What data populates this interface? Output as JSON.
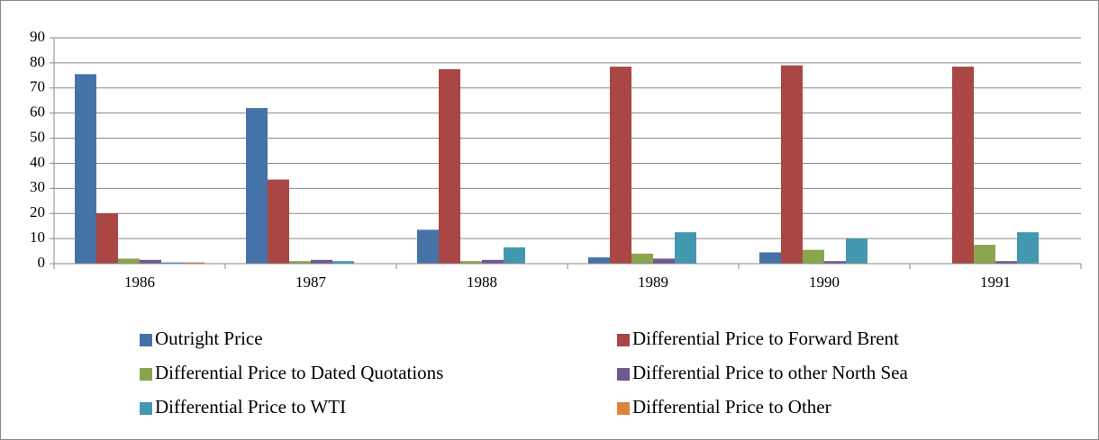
{
  "chart_data": {
    "type": "bar",
    "categories": [
      "1986",
      "1987",
      "1988",
      "1989",
      "1990",
      "1991"
    ],
    "series": [
      {
        "name": "Outright Price",
        "color": "#4572a7",
        "values": [
          75.5,
          62,
          13.5,
          2.5,
          4.5,
          0
        ]
      },
      {
        "name": "Differential Price to Forward Brent",
        "color": "#aa4643",
        "values": [
          20,
          33.5,
          77.5,
          78.5,
          79,
          78.5
        ]
      },
      {
        "name": "Differential Price to Dated Quotations",
        "color": "#89a54e",
        "values": [
          2,
          1,
          1,
          4,
          5.5,
          7.5
        ]
      },
      {
        "name": "Differential Price to other North Sea",
        "color": "#71588f",
        "values": [
          1.5,
          1.5,
          1.5,
          2,
          1,
          1
        ]
      },
      {
        "name": "Differential Price to WTI",
        "color": "#4198af",
        "values": [
          0.5,
          1,
          6.5,
          12.5,
          10,
          12.5
        ]
      },
      {
        "name": "Differential Price to Other",
        "color": "#db843d",
        "values": [
          0.5,
          0,
          0,
          0,
          0,
          0
        ]
      }
    ],
    "ylim": [
      0,
      90
    ],
    "yticks": [
      0,
      10,
      20,
      30,
      40,
      50,
      60,
      70,
      80,
      90
    ],
    "grid": true,
    "legend": "bottom"
  }
}
